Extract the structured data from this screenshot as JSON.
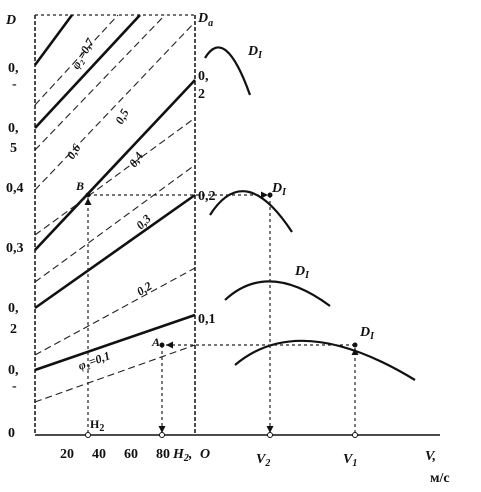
{
  "axis_labels": {
    "D": "D",
    "D_a": {
      "text": "D",
      "sub": "a"
    },
    "V": "V,",
    "unit": "м/с"
  },
  "left_ticks": [
    "0,",
    "-",
    "0,",
    "5",
    "0,4",
    "0,3",
    "0,",
    "2",
    "0,",
    "-",
    "0"
  ],
  "bottom_ticks": [
    "20",
    "40",
    "60",
    "80"
  ],
  "H2_axis": {
    "text": "H",
    "sub": "2",
    "suffix": ","
  },
  "origin": "O",
  "speeds": [
    {
      "text": "V",
      "sub": "2"
    },
    {
      "text": "V",
      "sub": "1"
    }
  ],
  "line_labels": [
    "φ₂=0,7",
    "0,6",
    "0,5",
    "0,4",
    "0,3",
    "0,2",
    "φ₂=0,1"
  ],
  "right_labels": [
    "0,",
    "2",
    "0,2",
    "0,1"
  ],
  "points": [
    "B",
    "A"
  ],
  "h2_marker": {
    "text": "H",
    "sub": "2"
  },
  "curves": [
    {
      "text": "D",
      "sub": "I"
    },
    {
      "text": "D",
      "sub": "I"
    },
    {
      "text": "D",
      "sub": "I"
    },
    {
      "text": "D",
      "sub": "I"
    }
  ]
}
